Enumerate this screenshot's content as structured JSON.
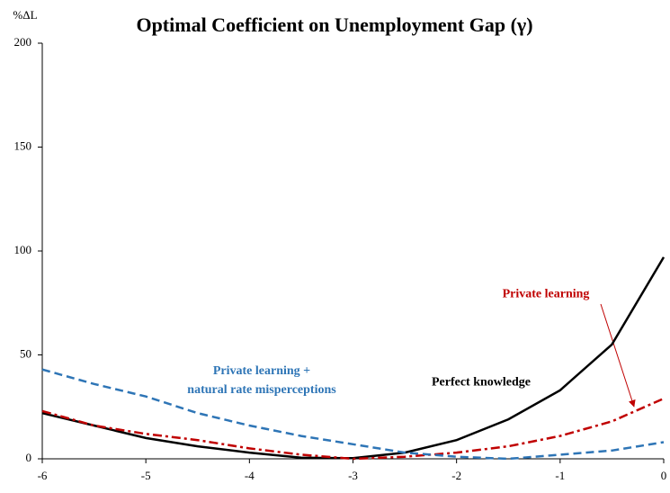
{
  "chart_data": {
    "type": "line",
    "title": "Optimal Coefficient on Unemployment Gap (γ)",
    "y_label": "%ΔL",
    "x": [
      -6,
      -5.5,
      -5,
      -4.5,
      -4,
      -3.5,
      -3,
      -2.5,
      -2,
      -1.5,
      -1,
      -0.5,
      0
    ],
    "series": [
      {
        "name": "Perfect knowledge",
        "color": "#000000",
        "dash": "solid",
        "values": [
          22,
          16,
          10,
          6,
          3,
          0.5,
          0.3,
          3,
          9,
          19,
          33,
          55,
          97
        ]
      },
      {
        "name": "Private learning",
        "color": "#c00000",
        "dash": "dashdot",
        "values": [
          23,
          16,
          12,
          9,
          5,
          2,
          0,
          1,
          3,
          6,
          11,
          18,
          29
        ]
      },
      {
        "name": "Private learning +\nnatural rate misperceptions",
        "color": "#2e75b6",
        "dash": "dashed",
        "values": [
          43,
          36,
          30,
          22,
          16,
          11,
          7,
          3,
          1,
          0,
          2,
          4,
          8
        ]
      }
    ],
    "xlim": [
      -6,
      0
    ],
    "xticks": [
      -6,
      -5,
      -4,
      -3,
      -2,
      -1,
      0
    ],
    "ylim": [
      0,
      200
    ],
    "yticks": [
      0,
      50,
      100,
      150,
      200
    ]
  }
}
